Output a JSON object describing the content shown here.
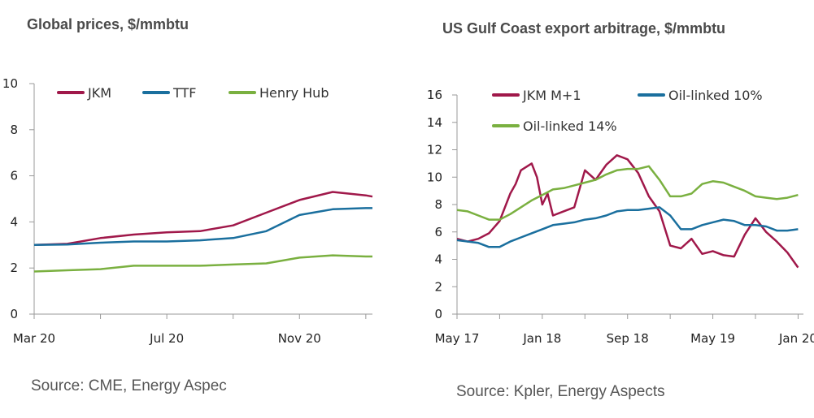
{
  "colors": {
    "jkm": "#a0184a",
    "ttf": "#1a6f9e",
    "henry": "#7ab040",
    "axis": "#9a9a9a"
  },
  "charts": [
    {
      "title": "Global prices, $/mmbtu",
      "source": "Source: CME, Energy Aspec"
    },
    {
      "title": "US Gulf Coast export arbitrage, $/mmbtu",
      "source": "Source: Kpler, Energy Aspects"
    }
  ],
  "chart_data": [
    {
      "type": "line",
      "title": "Global prices, $/mmbtu",
      "xlabel": "",
      "ylabel": "",
      "x_ticks": [
        "Mar 20",
        "Jul 20",
        "Nov 20"
      ],
      "x_tick_positions": [
        0,
        4,
        8
      ],
      "xlim": [
        0,
        10.2
      ],
      "ylim": [
        0,
        10
      ],
      "y_ticks": [
        0,
        2,
        4,
        6,
        8,
        10
      ],
      "legend": "top-left",
      "series": [
        {
          "name": "JKM",
          "color": "#a0184a",
          "x": [
            0,
            1,
            2,
            3,
            4,
            5,
            6,
            7,
            8,
            9,
            10,
            10.2
          ],
          "y": [
            3.0,
            3.05,
            3.3,
            3.45,
            3.55,
            3.6,
            3.85,
            4.4,
            4.95,
            5.3,
            5.15,
            5.1
          ]
        },
        {
          "name": "TTF",
          "color": "#1a6f9e",
          "x": [
            0,
            1,
            2,
            3,
            4,
            5,
            6,
            7,
            8,
            9,
            10,
            10.2
          ],
          "y": [
            3.0,
            3.02,
            3.1,
            3.15,
            3.15,
            3.2,
            3.3,
            3.6,
            4.3,
            4.55,
            4.6,
            4.6
          ]
        },
        {
          "name": "Henry Hub",
          "color": "#7ab040",
          "x": [
            0,
            1,
            2,
            3,
            4,
            5,
            6,
            7,
            8,
            9,
            10,
            10.2
          ],
          "y": [
            1.85,
            1.9,
            1.95,
            2.1,
            2.1,
            2.1,
            2.15,
            2.2,
            2.45,
            2.55,
            2.5,
            2.5
          ]
        }
      ]
    },
    {
      "type": "line",
      "title": "US Gulf Coast export arbitrage, $/mmbtu",
      "xlabel": "",
      "ylabel": "",
      "x_ticks": [
        "May 17",
        "Jan 18",
        "Sep 18",
        "May 19",
        "Jan 20"
      ],
      "x_tick_positions": [
        0,
        8,
        16,
        24,
        32
      ],
      "xlim": [
        0,
        32.5
      ],
      "ylim": [
        0,
        16
      ],
      "y_ticks": [
        0,
        2,
        4,
        6,
        8,
        10,
        12,
        14,
        16
      ],
      "legend": "top-left",
      "series": [
        {
          "name": "JKM M+1",
          "color": "#a0184a",
          "x": [
            0,
            1,
            2,
            3,
            4,
            5,
            5.5,
            6,
            7,
            7.5,
            8,
            8.5,
            9,
            10,
            11,
            12,
            13,
            14,
            15,
            16,
            17,
            18,
            19,
            20,
            21,
            22,
            23,
            24,
            25,
            26,
            27,
            28,
            29,
            30,
            31,
            32
          ],
          "y": [
            5.5,
            5.3,
            5.5,
            5.9,
            6.8,
            8.8,
            9.5,
            10.5,
            11.0,
            10.0,
            8.0,
            8.8,
            7.2,
            7.5,
            7.8,
            10.5,
            9.8,
            10.9,
            11.6,
            11.3,
            10.3,
            8.6,
            7.5,
            5.0,
            4.8,
            5.5,
            4.4,
            4.6,
            4.3,
            4.2,
            5.8,
            7.0,
            6.0,
            5.3,
            4.5,
            3.4
          ]
        },
        {
          "name": "Oil-linked 10%",
          "color": "#1a6f9e",
          "x": [
            0,
            2,
            3,
            4,
            5,
            6,
            7,
            8,
            9,
            10,
            11,
            12,
            13,
            14,
            15,
            16,
            17,
            18,
            19,
            20,
            21,
            22,
            23,
            24,
            25,
            26,
            27,
            28,
            29,
            30,
            31,
            32
          ],
          "y": [
            5.4,
            5.2,
            4.9,
            4.9,
            5.3,
            5.6,
            5.9,
            6.2,
            6.5,
            6.6,
            6.7,
            6.9,
            7.0,
            7.2,
            7.5,
            7.6,
            7.6,
            7.7,
            7.8,
            7.2,
            6.2,
            6.2,
            6.5,
            6.7,
            6.9,
            6.8,
            6.5,
            6.5,
            6.4,
            6.1,
            6.1,
            6.2
          ]
        },
        {
          "name": "Oil-linked 14%",
          "color": "#7ab040",
          "x": [
            0,
            1,
            2,
            3,
            4,
            5,
            6,
            7,
            8,
            9,
            10,
            11,
            12,
            13,
            14,
            15,
            16,
            17,
            18,
            19,
            20,
            21,
            22,
            23,
            24,
            25,
            26,
            27,
            28,
            29,
            30,
            31,
            32
          ],
          "y": [
            7.6,
            7.5,
            7.2,
            6.9,
            6.9,
            7.3,
            7.8,
            8.3,
            8.7,
            9.1,
            9.2,
            9.4,
            9.6,
            9.8,
            10.2,
            10.5,
            10.6,
            10.6,
            10.8,
            9.8,
            8.6,
            8.6,
            8.8,
            9.5,
            9.7,
            9.6,
            9.3,
            9.0,
            8.6,
            8.5,
            8.4,
            8.5,
            8.7
          ]
        }
      ]
    }
  ]
}
